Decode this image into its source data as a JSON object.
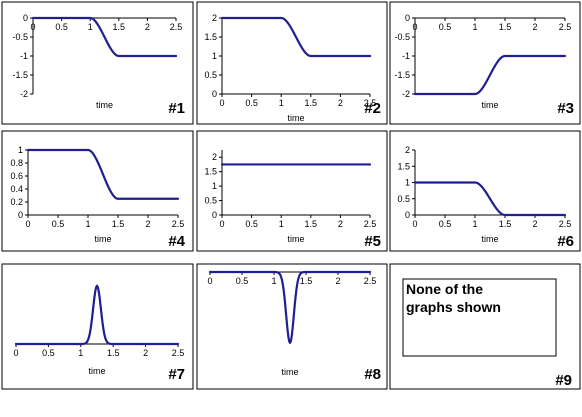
{
  "chart_data": [
    {
      "id": "#1",
      "type": "line",
      "xlabel": "time",
      "xlim": [
        0,
        2.5
      ],
      "xticks": [
        "0",
        "0.5",
        "1",
        "1.5",
        "2",
        "2.5"
      ],
      "ylim": [
        -2,
        0
      ],
      "yticks": [
        "0",
        "-0.5",
        "-1",
        "-1.5",
        "-2"
      ],
      "y_tick_values": [
        0,
        -0.5,
        -1,
        -1.5,
        -2
      ],
      "series": [
        {
          "shape": "step-down",
          "from": 0,
          "to": -1,
          "transition_start": 1.0,
          "transition_end": 1.5
        }
      ]
    },
    {
      "id": "#2",
      "type": "line",
      "xlabel": "time",
      "xlim": [
        0,
        2.5
      ],
      "xticks": [
        "0",
        "0.5",
        "1",
        "1.5",
        "2",
        "2.5"
      ],
      "ylim": [
        0,
        2
      ],
      "yticks": [
        "2",
        "1.5",
        "1",
        "0.5",
        "0"
      ],
      "y_tick_values": [
        2,
        1.5,
        1,
        0.5,
        0
      ],
      "series": [
        {
          "shape": "step-down",
          "from": 2,
          "to": 1,
          "transition_start": 1.0,
          "transition_end": 1.5
        }
      ]
    },
    {
      "id": "#3",
      "type": "line",
      "xlabel": "time",
      "xlim": [
        0,
        2.5
      ],
      "xticks": [
        "0",
        "0.5",
        "1",
        "1.5",
        "2",
        "2.5"
      ],
      "ylim": [
        -2,
        0
      ],
      "yticks": [
        "0",
        "-0.5",
        "-1",
        "-1.5",
        "-2"
      ],
      "y_tick_values": [
        0,
        -0.5,
        -1,
        -1.5,
        -2
      ],
      "series": [
        {
          "shape": "step-up",
          "from": -2,
          "to": -1,
          "transition_start": 1.0,
          "transition_end": 1.5
        }
      ]
    },
    {
      "id": "#4",
      "type": "line",
      "xlabel": "time",
      "xlim": [
        0,
        2.5
      ],
      "xticks": [
        "0",
        "0.5",
        "1",
        "1.5",
        "2",
        "2.5"
      ],
      "ylim": [
        0,
        1
      ],
      "yticks": [
        "1",
        "0.8",
        "0.6",
        "0.4",
        "0.2",
        "0"
      ],
      "y_tick_values": [
        1,
        0.8,
        0.6,
        0.4,
        0.2,
        0
      ],
      "series": [
        {
          "shape": "step-down",
          "from": 1,
          "to": 0.25,
          "transition_start": 1.0,
          "transition_end": 1.5
        }
      ]
    },
    {
      "id": "#5",
      "type": "line",
      "xlabel": "time",
      "xlim": [
        0,
        2.5
      ],
      "xticks": [
        "0",
        "0.5",
        "1",
        "1.5",
        "2",
        "2.5"
      ],
      "ylim": [
        0,
        2.25
      ],
      "yticks": [
        "2",
        "1.5",
        "1",
        "0.5",
        "0"
      ],
      "y_tick_values": [
        2,
        1.5,
        1,
        0.5,
        0
      ],
      "series": [
        {
          "shape": "constant",
          "value": 1.75
        }
      ]
    },
    {
      "id": "#6",
      "type": "line",
      "xlabel": "time",
      "xlim": [
        0,
        2.5
      ],
      "xticks": [
        "0",
        "0.5",
        "1",
        "1.5",
        "2",
        "2.5"
      ],
      "ylim": [
        0,
        2
      ],
      "yticks": [
        "2",
        "1.5",
        "1",
        "0.5",
        "0"
      ],
      "y_tick_values": [
        2,
        1.5,
        1,
        0.5,
        0
      ],
      "series": [
        {
          "shape": "step-down",
          "from": 1,
          "to": 0,
          "transition_start": 1.0,
          "transition_end": 1.5
        }
      ]
    },
    {
      "id": "#7",
      "type": "line",
      "xlabel": "time",
      "xlim": [
        0,
        2.5
      ],
      "xticks": [
        "0",
        "0.5",
        "1",
        "1.5",
        "2",
        "2.5"
      ],
      "ylim": [
        0,
        1.1
      ],
      "yticks": [],
      "y_tick_values": [],
      "series": [
        {
          "shape": "pulse-up",
          "baseline": 0,
          "peak": 1,
          "center": 1.25,
          "width": 0.12
        }
      ]
    },
    {
      "id": "#8",
      "type": "line",
      "xlabel": "time",
      "xlim": [
        0,
        2.5
      ],
      "xticks": [
        "0",
        "0.5",
        "1",
        "1.5",
        "2",
        "2.5"
      ],
      "ylim": [
        -1.1,
        0
      ],
      "yticks": [],
      "y_tick_values": [],
      "series": [
        {
          "shape": "pulse-down",
          "baseline": 0,
          "peak": -1,
          "center": 1.25,
          "width": 0.12
        }
      ]
    }
  ],
  "option9": {
    "id": "#9",
    "text_line1": "None of the",
    "text_line2": "graphs shown"
  }
}
